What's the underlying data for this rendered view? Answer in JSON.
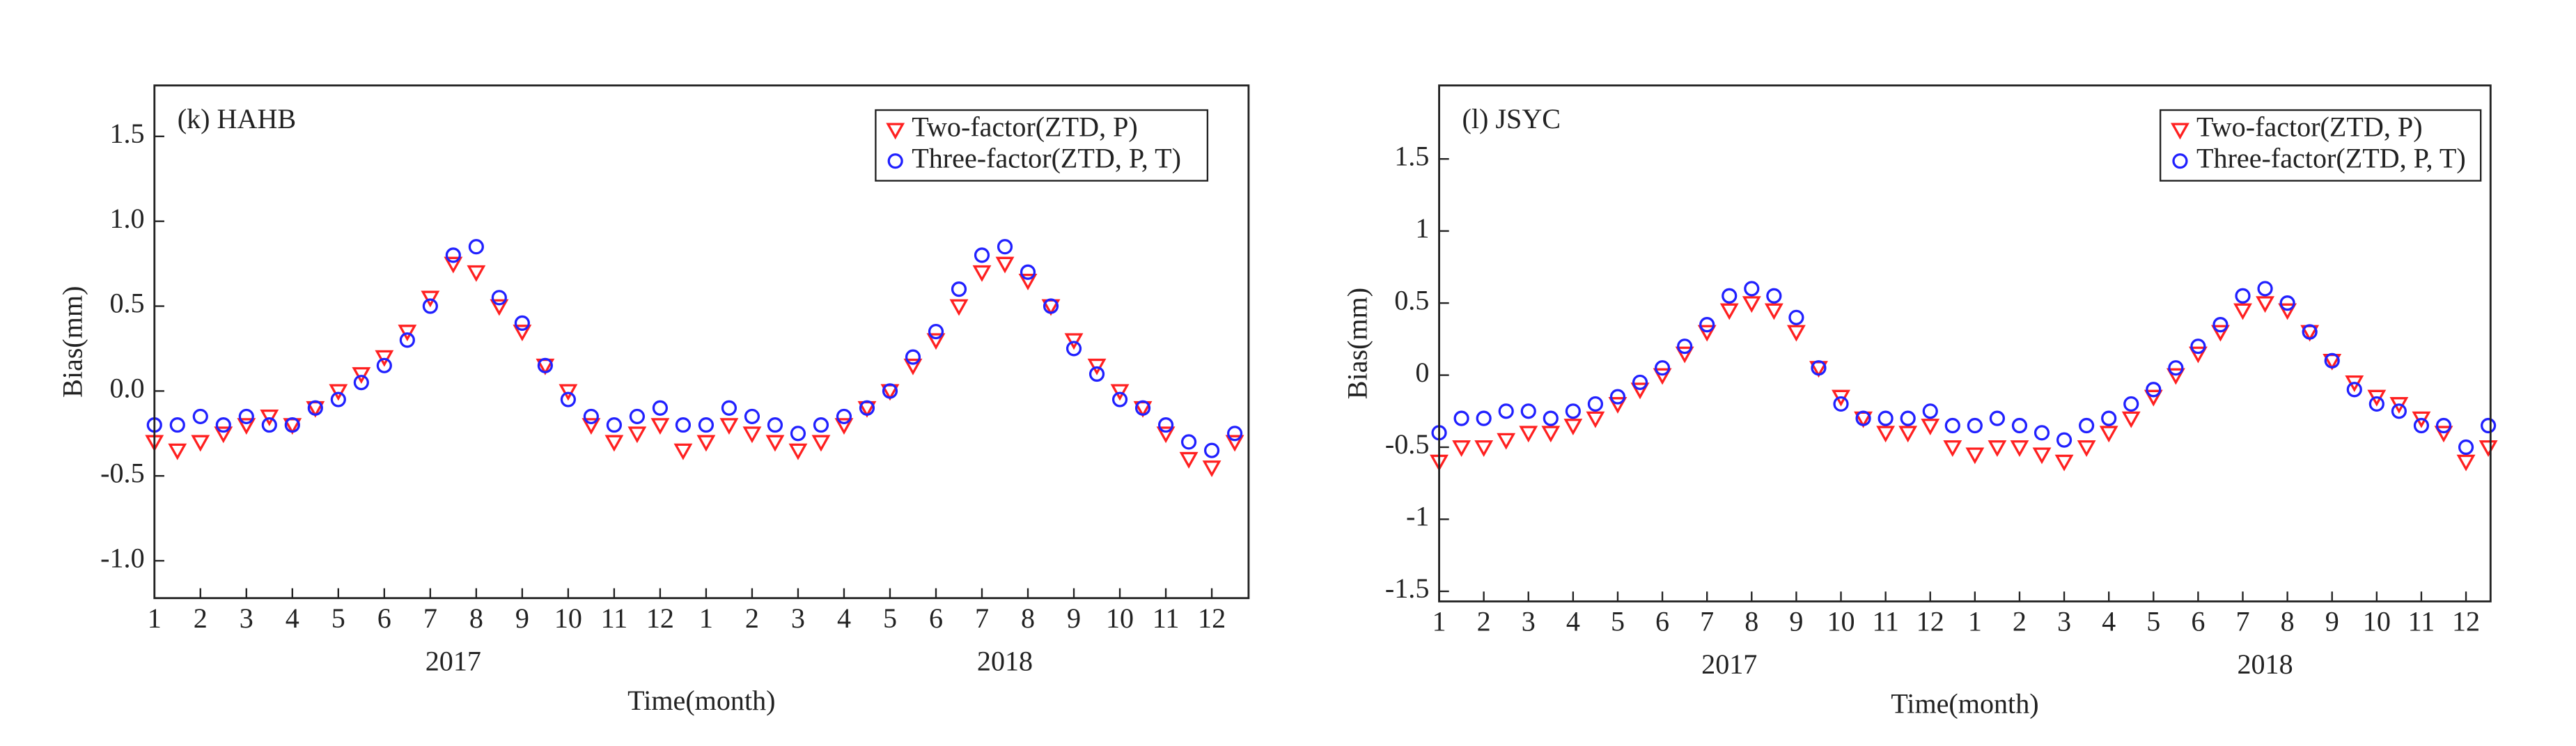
{
  "chart_data": [
    {
      "type": "scatter",
      "title": "(k) HAHB",
      "x_label": "Time(month)",
      "y_label": "Bias(mm)",
      "annotations": [
        "2017",
        "2018"
      ],
      "x": [
        1,
        1.5,
        2,
        2.5,
        3,
        3.5,
        4,
        4.5,
        5,
        5.5,
        6,
        6.5,
        7,
        7.5,
        8,
        8.5,
        9,
        9.5,
        10,
        10.5,
        11,
        11.5,
        12,
        12.5,
        13,
        13.5,
        14,
        14.5,
        15,
        15.5,
        16,
        16.5,
        17,
        17.5,
        18,
        18.5,
        19,
        19.5,
        20,
        20.5,
        21,
        21.5,
        22,
        22.5,
        23,
        23.5,
        24,
        24.5
      ],
      "series": [
        {
          "name": "Two-factor(ZTD, P)",
          "color": "#ff2020",
          "marker": "triangle",
          "values": [
            -0.3,
            -0.35,
            -0.3,
            -0.25,
            -0.2,
            -0.15,
            -0.2,
            -0.1,
            0.0,
            0.1,
            0.2,
            0.35,
            0.55,
            0.75,
            0.7,
            0.5,
            0.35,
            0.15,
            0.0,
            -0.2,
            -0.3,
            -0.25,
            -0.2,
            -0.35,
            -0.3,
            -0.2,
            -0.25,
            -0.3,
            -0.35,
            -0.3,
            -0.2,
            -0.1,
            0.0,
            0.15,
            0.3,
            0.5,
            0.7,
            0.75,
            0.65,
            0.5,
            0.3,
            0.15,
            0.0,
            -0.1,
            -0.25,
            -0.4,
            -0.45,
            -0.3
          ]
        },
        {
          "name": "Three-factor(ZTD, P, T)",
          "color": "#2020ff",
          "marker": "circle",
          "values": [
            -0.2,
            -0.2,
            -0.15,
            -0.2,
            -0.15,
            -0.2,
            -0.2,
            -0.1,
            -0.05,
            0.05,
            0.15,
            0.3,
            0.5,
            0.8,
            0.85,
            0.55,
            0.4,
            0.15,
            -0.05,
            -0.15,
            -0.2,
            -0.15,
            -0.1,
            -0.2,
            -0.2,
            -0.1,
            -0.15,
            -0.2,
            -0.25,
            -0.2,
            -0.15,
            -0.1,
            0.0,
            0.2,
            0.35,
            0.6,
            0.8,
            0.85,
            0.7,
            0.5,
            0.25,
            0.1,
            -0.05,
            -0.1,
            -0.2,
            -0.3,
            -0.35,
            -0.25
          ]
        }
      ],
      "xlim": [
        1,
        24.8
      ],
      "xticks": [
        1,
        2,
        3,
        4,
        5,
        6,
        7,
        8,
        9,
        10,
        11,
        12,
        {
          "value": 13,
          "label": "1"
        },
        {
          "value": 14,
          "label": "2"
        },
        {
          "value": 15,
          "label": "3"
        },
        {
          "value": 16,
          "label": "4"
        },
        {
          "value": 17,
          "label": "5"
        },
        {
          "value": 18,
          "label": "6"
        },
        {
          "value": 19,
          "label": "7"
        },
        {
          "value": 20,
          "label": "8"
        },
        {
          "value": 21,
          "label": "9"
        },
        {
          "value": 22,
          "label": "10"
        },
        {
          "value": 23,
          "label": "11"
        },
        {
          "value": 24,
          "label": "12"
        }
      ],
      "ylim": [
        -1.22,
        1.8
      ],
      "yticks": [
        {
          "value": -1,
          "label": "-1.0"
        },
        -0.5,
        {
          "value": 0,
          "label": "0.0"
        },
        0.5,
        {
          "value": 1,
          "label": "1.0"
        },
        1.5
      ],
      "grid": false,
      "legend": "upper right"
    },
    {
      "type": "scatter",
      "title": "(l) JSYC",
      "x_label": "Time(month)",
      "y_label": "Bias(mm)",
      "annotations": [
        "2017",
        "2018"
      ],
      "x": [
        1,
        1.5,
        2,
        2.5,
        3,
        3.5,
        4,
        4.5,
        5,
        5.5,
        6,
        6.5,
        7,
        7.5,
        8,
        8.5,
        9,
        9.5,
        10,
        10.5,
        11,
        11.5,
        12,
        12.5,
        13,
        13.5,
        14,
        14.5,
        15,
        15.5,
        16,
        16.5,
        17,
        17.5,
        18,
        18.5,
        19,
        19.5,
        20,
        20.5,
        21,
        21.5,
        22,
        22.5,
        23,
        23.5,
        24,
        24.5
      ],
      "series": [
        {
          "name": "Two-factor(ZTD, P)",
          "color": "#ff2020",
          "marker": "triangle",
          "values": [
            -0.6,
            -0.5,
            -0.5,
            -0.45,
            -0.4,
            -0.4,
            -0.35,
            -0.3,
            -0.2,
            -0.1,
            0.0,
            0.15,
            0.3,
            0.45,
            0.5,
            0.45,
            0.3,
            0.05,
            -0.15,
            -0.3,
            -0.4,
            -0.4,
            -0.35,
            -0.5,
            -0.55,
            -0.5,
            -0.5,
            -0.55,
            -0.6,
            -0.5,
            -0.4,
            -0.3,
            -0.15,
            0.0,
            0.15,
            0.3,
            0.45,
            0.5,
            0.45,
            0.3,
            0.1,
            -0.05,
            -0.15,
            -0.2,
            -0.3,
            -0.4,
            -0.6,
            -0.5
          ]
        },
        {
          "name": "Three-factor(ZTD, P, T)",
          "color": "#2020ff",
          "marker": "circle",
          "values": [
            -0.4,
            -0.3,
            -0.3,
            -0.25,
            -0.25,
            -0.3,
            -0.25,
            -0.2,
            -0.15,
            -0.05,
            0.05,
            0.2,
            0.35,
            0.55,
            0.6,
            0.55,
            0.4,
            0.05,
            -0.2,
            -0.3,
            -0.3,
            -0.3,
            -0.25,
            -0.35,
            -0.35,
            -0.3,
            -0.35,
            -0.4,
            -0.45,
            -0.35,
            -0.3,
            -0.2,
            -0.1,
            0.05,
            0.2,
            0.35,
            0.55,
            0.6,
            0.5,
            0.3,
            0.1,
            -0.1,
            -0.2,
            -0.25,
            -0.35,
            -0.35,
            -0.5,
            -0.35
          ]
        }
      ],
      "xlim": [
        1,
        24.55
      ],
      "xticks": [
        1,
        2,
        3,
        4,
        5,
        6,
        7,
        8,
        9,
        10,
        11,
        12,
        {
          "value": 13,
          "label": "1"
        },
        {
          "value": 14,
          "label": "2"
        },
        {
          "value": 15,
          "label": "3"
        },
        {
          "value": 16,
          "label": "4"
        },
        {
          "value": 17,
          "label": "5"
        },
        {
          "value": 18,
          "label": "6"
        },
        {
          "value": 19,
          "label": "7"
        },
        {
          "value": 20,
          "label": "8"
        },
        {
          "value": 21,
          "label": "9"
        },
        {
          "value": 22,
          "label": "10"
        },
        {
          "value": 23,
          "label": "11"
        },
        {
          "value": 24,
          "label": "12"
        }
      ],
      "ylim": [
        -1.57,
        2.01
      ],
      "yticks": [
        -1.5,
        -1,
        -0.5,
        0,
        0.5,
        1,
        1.5
      ],
      "grid": false,
      "legend": "upper right"
    }
  ]
}
